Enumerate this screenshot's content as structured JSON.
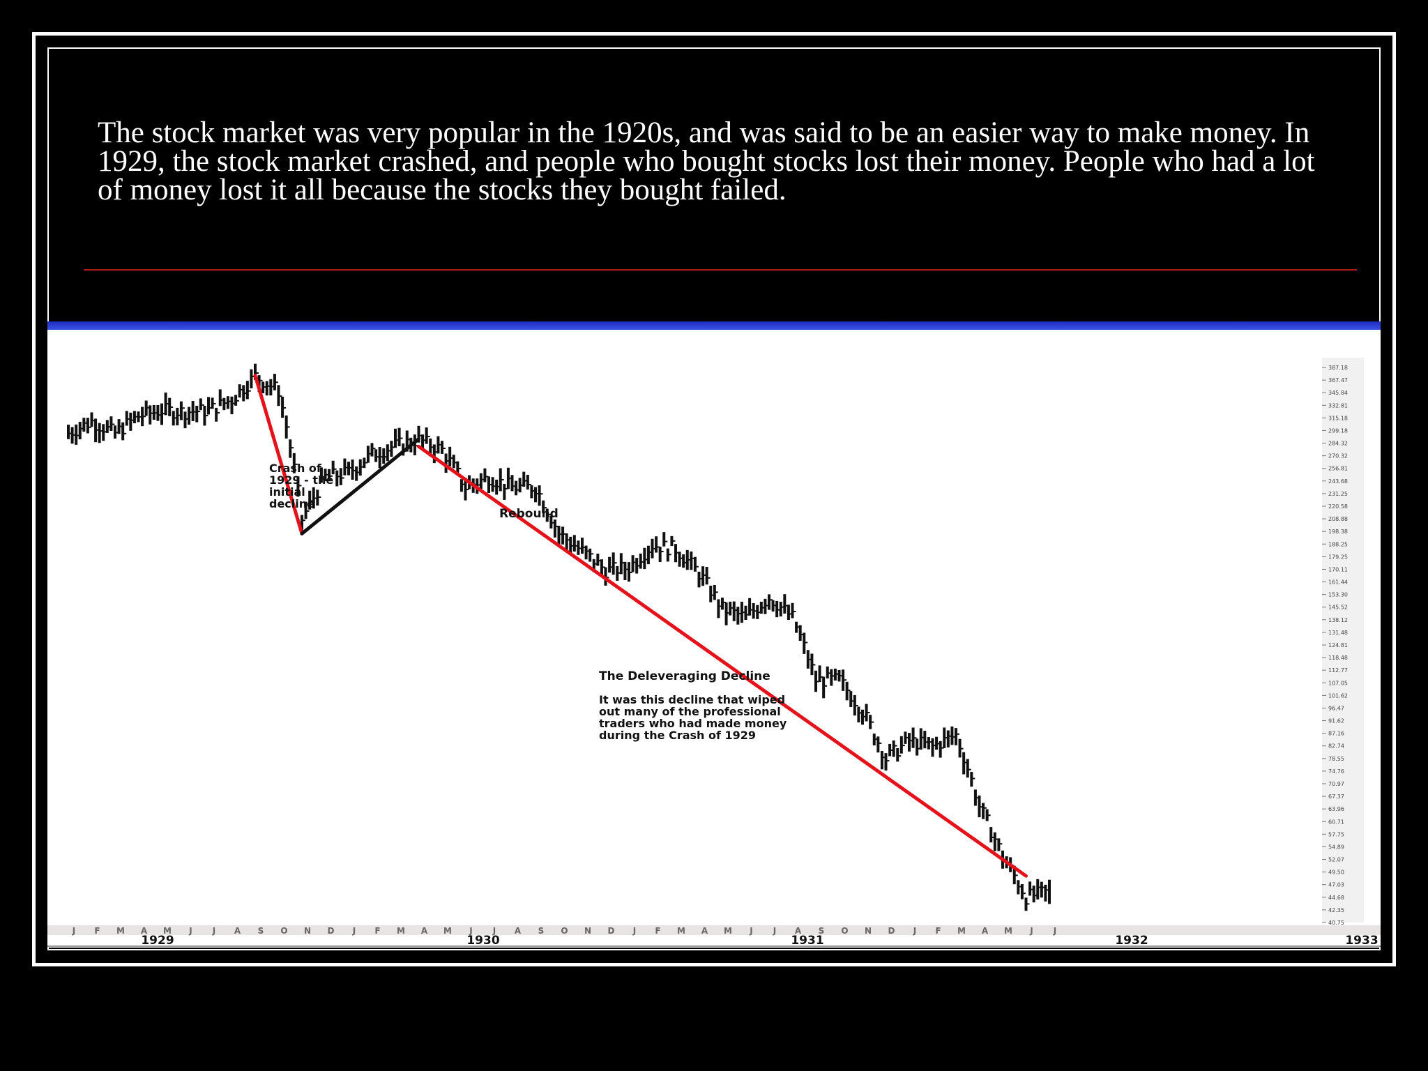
{
  "slide": {
    "caption": "The stock market was very popular in the 1920s, and was said to be an easier way to make money. In 1929, the stock market crashed, and people who bought stocks lost their money. People who had a lot of money lost it all because the stocks they bought failed.",
    "frame_color": "#ffffff",
    "rule_color": "#b0161a",
    "accent_color": "#2a3fd6"
  },
  "chart_data": {
    "type": "line",
    "title": "",
    "xlabel": "",
    "ylabel": "",
    "x_year_labels": [
      "1929",
      "1930",
      "1931",
      "1932",
      "1933"
    ],
    "month_ticks": [
      "J",
      "F",
      "M",
      "A",
      "M",
      "J",
      "J",
      "A",
      "S",
      "O",
      "N",
      "D",
      "J",
      "F",
      "M",
      "A",
      "M",
      "J",
      "J",
      "A",
      "S",
      "O",
      "N",
      "D",
      "J",
      "F",
      "M",
      "A",
      "M",
      "J",
      "J",
      "A",
      "S",
      "O",
      "N",
      "D",
      "J",
      "F",
      "M",
      "A",
      "M",
      "J",
      "J"
    ],
    "y_tick_labels": [
      "387.18",
      "367.47",
      "345.84",
      "332.81",
      "315.18",
      "299.18",
      "284.32",
      "270.32",
      "256.81",
      "243.68",
      "231.25",
      "220.58",
      "208.88",
      "198.38",
      "188.25",
      "179.25",
      "170.11",
      "161.44",
      "153.30",
      "145.52",
      "138.12",
      "131.48",
      "124.81",
      "118.48",
      "112.77",
      "107.05",
      "101.62",
      "96.47",
      "91.62",
      "87.16",
      "82.74",
      "78.55",
      "74.76",
      "70.97",
      "67.37",
      "63.96",
      "60.71",
      "57.75",
      "54.89",
      "52.07",
      "49.50",
      "47.03",
      "44.68",
      "42.35",
      "40.75"
    ],
    "ylim": [
      40.75,
      387.18
    ],
    "series": [
      {
        "values": [
          {
            "x": "1929-01",
            "y": 300
          },
          {
            "x": "1929-02",
            "y": 315
          },
          {
            "x": "1929-03",
            "y": 300
          },
          {
            "x": "1929-04",
            "y": 322
          },
          {
            "x": "1929-05",
            "y": 330
          },
          {
            "x": "1929-06",
            "y": 328
          },
          {
            "x": "1929-07",
            "y": 330
          },
          {
            "x": "1929-08",
            "y": 345
          },
          {
            "x": "1929-09",
            "y": 380
          },
          {
            "x": "1929-10",
            "y": 358
          },
          {
            "x": "1929-11",
            "y": 210
          },
          {
            "x": "1929-12",
            "y": 250
          },
          {
            "x": "1930-01",
            "y": 255
          },
          {
            "x": "1930-02",
            "y": 275
          },
          {
            "x": "1930-03",
            "y": 285
          },
          {
            "x": "1930-04",
            "y": 292
          },
          {
            "x": "1930-05",
            "y": 280
          },
          {
            "x": "1930-06",
            "y": 240
          },
          {
            "x": "1930-07",
            "y": 250
          },
          {
            "x": "1930-08",
            "y": 240
          },
          {
            "x": "1930-09",
            "y": 240
          },
          {
            "x": "1930-10",
            "y": 198
          },
          {
            "x": "1930-11",
            "y": 184
          },
          {
            "x": "1930-12",
            "y": 170
          },
          {
            "x": "1931-01",
            "y": 172
          },
          {
            "x": "1931-02",
            "y": 189
          },
          {
            "x": "1931-03",
            "y": 186
          },
          {
            "x": "1931-04",
            "y": 168
          },
          {
            "x": "1931-05",
            "y": 145
          },
          {
            "x": "1931-06",
            "y": 140
          },
          {
            "x": "1931-07",
            "y": 152
          },
          {
            "x": "1931-08",
            "y": 140
          },
          {
            "x": "1931-09",
            "y": 108
          },
          {
            "x": "1931-10",
            "y": 108
          },
          {
            "x": "1931-11",
            "y": 95
          },
          {
            "x": "1931-12",
            "y": 78
          },
          {
            "x": "1932-01",
            "y": 84
          },
          {
            "x": "1932-02",
            "y": 82
          },
          {
            "x": "1932-03",
            "y": 86
          },
          {
            "x": "1932-04",
            "y": 64
          },
          {
            "x": "1932-05",
            "y": 52
          },
          {
            "x": "1932-06",
            "y": 44
          },
          {
            "x": "1932-07",
            "y": 45
          }
        ]
      }
    ],
    "annotations": [
      {
        "id": "crash",
        "lines": [
          "Crash of",
          "1929 - the",
          "initial",
          "decline"
        ]
      },
      {
        "id": "rebound",
        "lines": [
          "Rebound"
        ]
      },
      {
        "id": "deleveraging-title",
        "lines": [
          "The Deleveraging Decline"
        ]
      },
      {
        "id": "deleveraging-body",
        "lines": [
          "It was this decline that wiped",
          "out many of the professional",
          "traders who had made money",
          "during the Crash of 1929"
        ]
      }
    ],
    "trend_lines": [
      {
        "id": "crash-line",
        "from": {
          "x": "1929-09",
          "y": 381
        },
        "to": {
          "x": "1929-11",
          "y": 198
        },
        "color": "#e3121b"
      },
      {
        "id": "rebound-line",
        "from": {
          "x": "1929-11",
          "y": 198
        },
        "to": {
          "x": "1930-04",
          "y": 293
        },
        "color": "#111111"
      },
      {
        "id": "deleveraging-line",
        "from": {
          "x": "1930-04",
          "y": 284
        },
        "to": {
          "x": "1932-06",
          "y": 48
        },
        "color": "#e3121b"
      }
    ],
    "grid": false,
    "legend": "none"
  }
}
